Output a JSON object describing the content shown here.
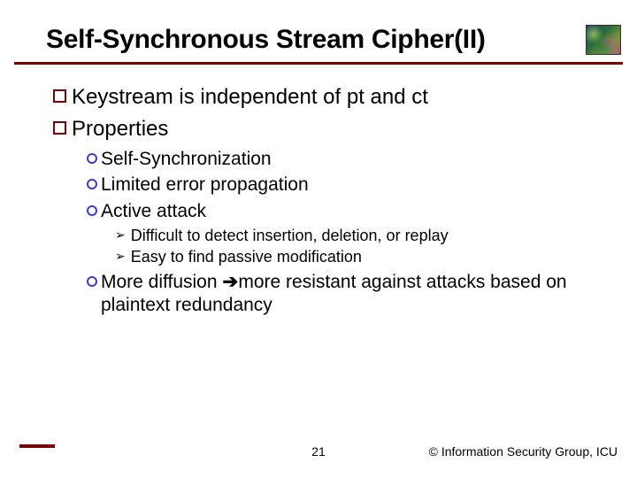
{
  "title": "Self-Synchronous Stream Cipher(II)",
  "colors": {
    "rule": "#7b0000",
    "square_bullet_border": "#7b0000",
    "circle_bullet_border": "#3f3fbf",
    "text": "#000000",
    "background": "#ffffff"
  },
  "typography": {
    "title_fontsize": 30,
    "lvl1_fontsize": 24,
    "lvl2_fontsize": 21,
    "lvl3_fontsize": 18,
    "footer_fontsize": 14,
    "font_family": "Arial"
  },
  "bullets": {
    "lvl1": [
      {
        "text": "Keystream is independent of pt and ct"
      },
      {
        "text": "Properties"
      }
    ],
    "lvl2": [
      {
        "text": "Self-Synchronization"
      },
      {
        "text": "Limited error propagation"
      },
      {
        "text": "Active attack"
      },
      {
        "text_pre": "More diffusion ",
        "arrow": "➔",
        "text_post": "more resistant against attacks based on plaintext redundancy"
      }
    ],
    "lvl3": [
      {
        "text": "Difficult to detect insertion, deletion, or replay"
      },
      {
        "text": "Easy to find passive modification"
      }
    ]
  },
  "footer": {
    "page": "21",
    "copyright": "© Information Security Group, ICU"
  }
}
